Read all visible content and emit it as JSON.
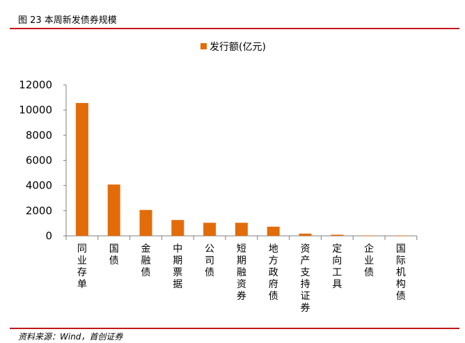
{
  "figure": {
    "title": "图 23 本周新发债券规模",
    "source": "资料来源：Wind，首创证券"
  },
  "colors": {
    "bar": "#e36c0a",
    "rule": "#c4141a",
    "axis": "#7f7f7f"
  },
  "chart_data": {
    "type": "bar",
    "title": "",
    "xlabel": "",
    "ylabel": "",
    "categories": [
      "同业存单",
      "国债",
      "金融债",
      "中期票据",
      "公司债",
      "短期融资券",
      "地方政府债",
      "资产支持证券",
      "定向工具",
      "企业债",
      "国际机构债"
    ],
    "series": [
      {
        "name": "发行额(亿元)",
        "values": [
          10560,
          4080,
          2060,
          1260,
          1040,
          1040,
          730,
          180,
          90,
          30,
          30
        ]
      }
    ],
    "yticks": [
      "0",
      "2000",
      "4000",
      "6000",
      "8000",
      "10000",
      "12000"
    ],
    "ylim": [
      0,
      12000
    ],
    "grid": false,
    "legend_position": "top"
  }
}
